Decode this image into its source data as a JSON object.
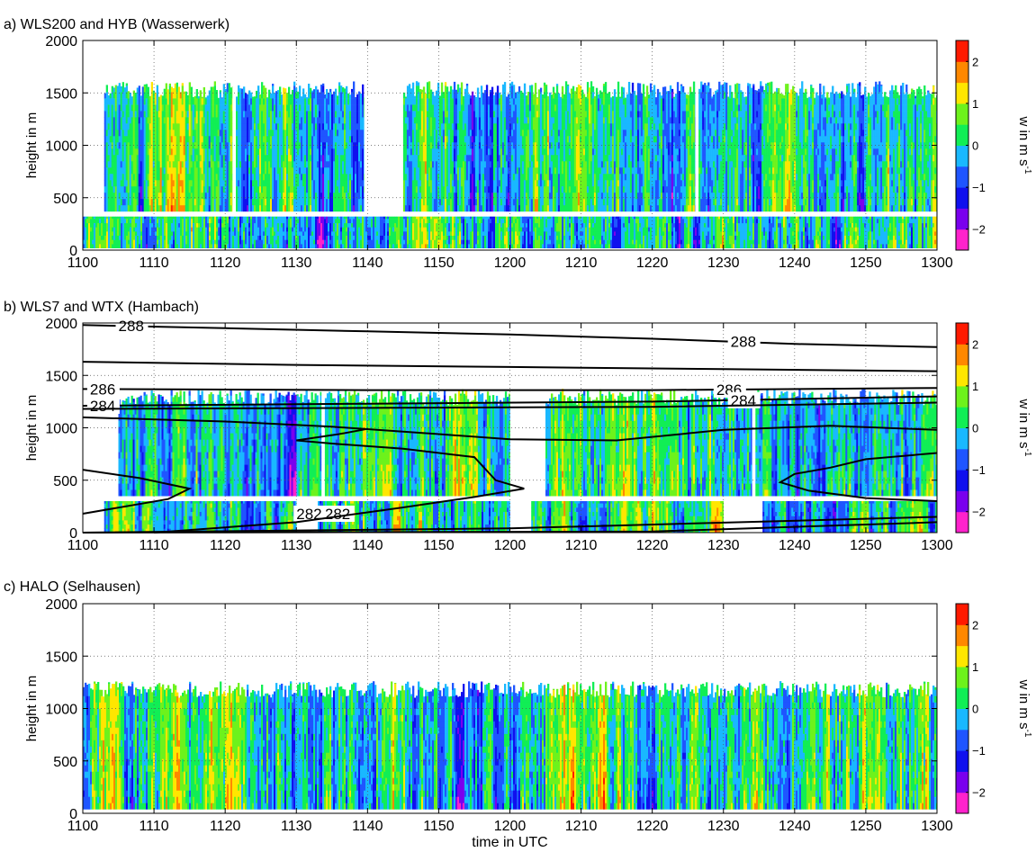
{
  "figure": {
    "xlabel": "time in UTC",
    "colorbar": {
      "label": "w in m s-1",
      "label_main": "w in m s",
      "label_sup": "-1",
      "range": [
        -2.5,
        2.5
      ],
      "ticks": [
        "2",
        "1",
        "0",
        "−1",
        "−2"
      ],
      "tick_values": [
        2,
        1,
        0,
        -1,
        -2
      ],
      "colormap": [
        "#ff22cc",
        "#7a00ee",
        "#1010ee",
        "#1f55ff",
        "#19b8ff",
        "#11ee55",
        "#6df21c",
        "#ffe600",
        "#ff8800",
        "#ff1a00"
      ]
    }
  },
  "chart_data": [
    {
      "type": "heatmap",
      "title": "a) WLS200 and HYB (Wasserwerk)",
      "ylabel": "height in m",
      "xlabel": "",
      "x_ticks": [
        "1100",
        "1110",
        "1120",
        "1130",
        "1140",
        "1150",
        "1200",
        "1210",
        "1220",
        "1230",
        "1240",
        "1250",
        "1300"
      ],
      "x_tick_minutes": [
        0,
        10,
        20,
        30,
        40,
        50,
        60,
        70,
        80,
        90,
        100,
        110,
        120
      ],
      "y_ticks": [
        "0",
        "500",
        "1000",
        "1500",
        "2000"
      ],
      "y_tick_values": [
        0,
        500,
        1000,
        1500,
        2000
      ],
      "ylim": [
        0,
        2000
      ],
      "grid": true,
      "value_range": [
        -2.5,
        2.5
      ],
      "seed": 11,
      "lower_segments": [
        [
          0,
          120
        ]
      ],
      "lower_range": [
        20,
        320
      ],
      "upper_segments": [
        [
          3,
          21
        ],
        [
          21.5,
          39.5
        ],
        [
          45,
          86
        ],
        [
          86.5,
          120
        ]
      ],
      "upper_range": [
        370,
        1500
      ],
      "separator_height": 340,
      "bias": [
        [
          0,
          -0.2
        ],
        [
          10,
          0.1
        ],
        [
          12,
          0.6
        ],
        [
          18,
          0.5
        ],
        [
          22,
          -0.3
        ],
        [
          30,
          0.0
        ],
        [
          33,
          -0.8
        ],
        [
          40,
          -0.4
        ],
        [
          48,
          0.5
        ],
        [
          55,
          -0.5
        ],
        [
          60,
          0.0
        ],
        [
          70,
          0.4
        ],
        [
          80,
          -0.4
        ],
        [
          90,
          -0.3
        ],
        [
          100,
          0.0
        ],
        [
          110,
          -0.2
        ],
        [
          120,
          0.0
        ]
      ],
      "contours": []
    },
    {
      "type": "heatmap",
      "title": "b) WLS7 and WTX (Hambach)",
      "ylabel": "height in m",
      "xlabel": "",
      "x_ticks": [
        "1100",
        "1110",
        "1120",
        "1130",
        "1140",
        "1150",
        "1200",
        "1210",
        "1220",
        "1230",
        "1240",
        "1250",
        "1300"
      ],
      "x_tick_minutes": [
        0,
        10,
        20,
        30,
        40,
        50,
        60,
        70,
        80,
        90,
        100,
        110,
        120
      ],
      "y_ticks": [
        "0",
        "500",
        "1000",
        "1500",
        "2000"
      ],
      "y_tick_values": [
        0,
        500,
        1000,
        1500,
        2000
      ],
      "ylim": [
        0,
        2000
      ],
      "grid": true,
      "value_range": [
        -2.5,
        2.5
      ],
      "seed": 23,
      "lower_segments": [
        [
          3,
          30
        ],
        [
          33,
          60
        ],
        [
          63,
          90
        ],
        [
          95.5,
          120
        ]
      ],
      "lower_range": [
        0,
        300
      ],
      "upper_segments": [
        [
          5,
          33.5
        ],
        [
          34,
          60
        ],
        [
          65,
          94
        ],
        [
          94.5,
          120
        ]
      ],
      "upper_range": [
        350,
        1260
      ],
      "separator_height": 320,
      "bias": [
        [
          0,
          0.0
        ],
        [
          10,
          -0.3
        ],
        [
          20,
          0.2
        ],
        [
          30,
          -0.5
        ],
        [
          40,
          0.3
        ],
        [
          50,
          0.2
        ],
        [
          60,
          0.0
        ],
        [
          70,
          0.3
        ],
        [
          80,
          0.4
        ],
        [
          90,
          0.0
        ],
        [
          100,
          -0.5
        ],
        [
          110,
          -0.3
        ],
        [
          120,
          0.0
        ]
      ],
      "contours": [
        {
          "label": "288",
          "label_minute": 5,
          "label_minute_2": 91,
          "points": [
            [
              0,
              1980
            ],
            [
              20,
              1950
            ],
            [
              40,
              1920
            ],
            [
              60,
              1890
            ],
            [
              80,
              1850
            ],
            [
              100,
              1800
            ],
            [
              120,
              1770
            ]
          ]
        },
        {
          "label": "",
          "label_minute": -1,
          "label_minute_2": -1,
          "points": [
            [
              0,
              1630
            ],
            [
              30,
              1600
            ],
            [
              60,
              1580
            ],
            [
              90,
              1560
            ],
            [
              120,
              1540
            ]
          ]
        },
        {
          "label": "286",
          "label_minute": 1,
          "label_minute_2": 89,
          "points": [
            [
              0,
              1370
            ],
            [
              40,
              1360
            ],
            [
              80,
              1360
            ],
            [
              120,
              1380
            ]
          ]
        },
        {
          "label": "284",
          "label_minute": 1,
          "label_minute_2": 91,
          "points": [
            [
              0,
              1210
            ],
            [
              40,
              1230
            ],
            [
              80,
              1250
            ],
            [
              120,
              1300
            ]
          ]
        },
        {
          "label": "",
          "label_minute": -1,
          "label_minute_2": -1,
          "points": [
            [
              0,
              1180
            ],
            [
              40,
              1190
            ],
            [
              80,
              1200
            ],
            [
              120,
              1240
            ]
          ]
        },
        {
          "label": "",
          "label_minute": -1,
          "label_minute_2": -1,
          "points": [
            [
              0,
              1100
            ],
            [
              20,
              1060
            ],
            [
              35,
              1010
            ],
            [
              50,
              940
            ],
            [
              60,
              890
            ],
            [
              75,
              880
            ],
            [
              90,
              980
            ],
            [
              105,
              1020
            ],
            [
              120,
              980
            ]
          ]
        },
        {
          "label": "282",
          "label_minute": 34,
          "label_minute_2": 30,
          "points": [
            [
              0,
              600
            ],
            [
              8,
              520
            ],
            [
              15,
              420
            ],
            [
              12,
              320
            ],
            [
              0,
              180
            ]
          ]
        },
        {
          "label": "",
          "label_minute": -1,
          "label_minute_2": -1,
          "points": [
            [
              10,
              0
            ],
            [
              30,
              100
            ],
            [
              45,
              240
            ],
            [
              55,
              340
            ],
            [
              62,
              420
            ],
            [
              58,
              500
            ],
            [
              55,
              720
            ],
            [
              45,
              800
            ],
            [
              35,
              850
            ],
            [
              30,
              880
            ],
            [
              36,
              940
            ],
            [
              40,
              990
            ]
          ]
        },
        {
          "label": "",
          "label_minute": -1,
          "label_minute_2": -1,
          "points": [
            [
              0,
              0
            ],
            [
              60,
              40
            ],
            [
              120,
              150
            ]
          ]
        },
        {
          "label": "",
          "label_minute": -1,
          "label_minute_2": -1,
          "points": [
            [
              0,
              0
            ],
            [
              80,
              10
            ],
            [
              120,
              100
            ]
          ]
        },
        {
          "label": "",
          "label_minute": -1,
          "label_minute_2": -1,
          "points": [
            [
              120,
              760
            ],
            [
              110,
              700
            ],
            [
              105,
              620
            ],
            [
              100,
              560
            ],
            [
              98,
              480
            ],
            [
              102,
              400
            ],
            [
              110,
              330
            ],
            [
              120,
              300
            ]
          ]
        }
      ]
    },
    {
      "type": "heatmap",
      "title": "c) HALO (Selhausen)",
      "ylabel": "height in m",
      "xlabel": "time in UTC",
      "x_ticks": [
        "1100",
        "1110",
        "1120",
        "1130",
        "1140",
        "1150",
        "1200",
        "1210",
        "1220",
        "1230",
        "1240",
        "1250",
        "1300"
      ],
      "x_tick_minutes": [
        0,
        10,
        20,
        30,
        40,
        50,
        60,
        70,
        80,
        90,
        100,
        110,
        120
      ],
      "y_ticks": [
        "0",
        "500",
        "1000",
        "1500",
        "2000"
      ],
      "y_tick_values": [
        0,
        500,
        1000,
        1500,
        2000
      ],
      "ylim": [
        0,
        2000
      ],
      "grid": true,
      "value_range": [
        -2.5,
        2.5
      ],
      "seed": 37,
      "lower_segments": [],
      "lower_range": [
        0,
        0
      ],
      "upper_segments": [
        [
          0,
          120
        ]
      ],
      "upper_range": [
        40,
        1150
      ],
      "separator_height": null,
      "bias": [
        [
          0,
          0.0
        ],
        [
          3,
          0.8
        ],
        [
          8,
          -0.3
        ],
        [
          12,
          1.0
        ],
        [
          16,
          0.0
        ],
        [
          20,
          1.0
        ],
        [
          24,
          -0.2
        ],
        [
          30,
          -0.3
        ],
        [
          40,
          -0.2
        ],
        [
          43,
          0.9
        ],
        [
          48,
          -0.3
        ],
        [
          55,
          -0.8
        ],
        [
          60,
          -0.2
        ],
        [
          66,
          0.6
        ],
        [
          70,
          0.9
        ],
        [
          75,
          0.2
        ],
        [
          80,
          0.0
        ],
        [
          90,
          0.0
        ],
        [
          100,
          0.0
        ],
        [
          110,
          0.0
        ],
        [
          117,
          0.3
        ],
        [
          120,
          -0.3
        ]
      ],
      "contours": []
    }
  ]
}
